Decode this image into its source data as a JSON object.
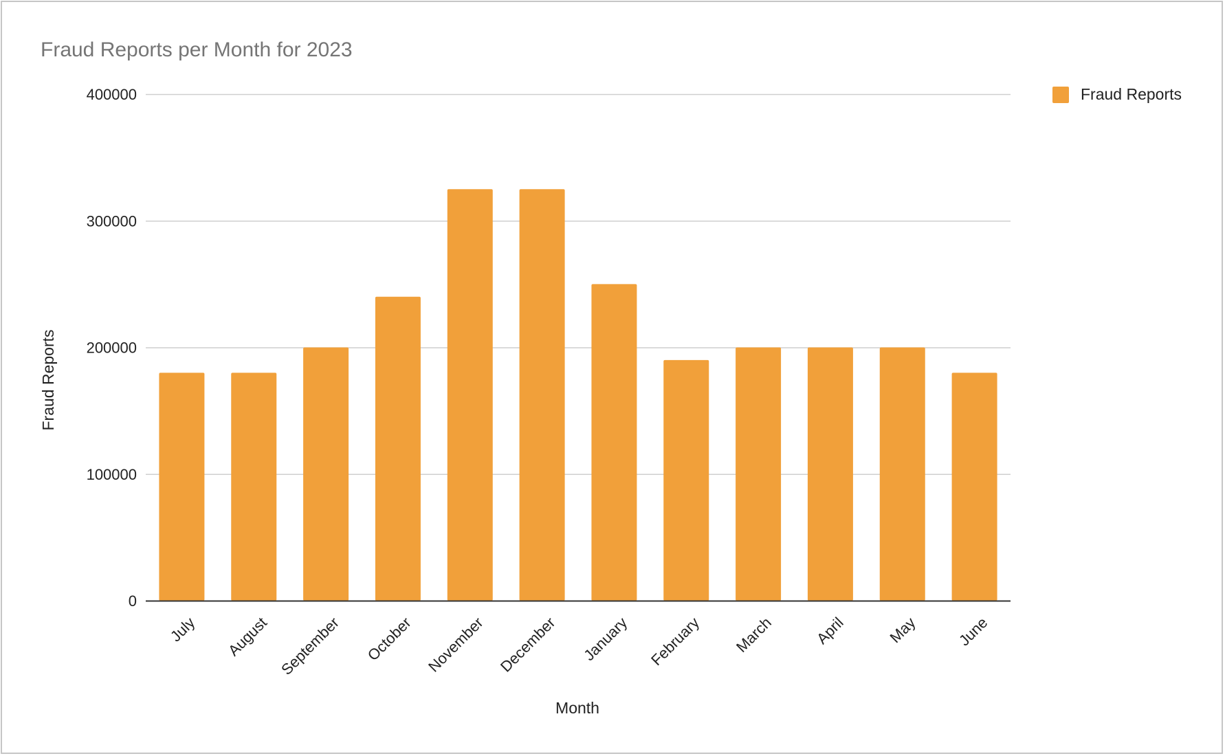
{
  "chart_data": {
    "type": "bar",
    "title": "Fraud Reports per Month for 2023",
    "xlabel": "Month",
    "ylabel": "Fraud Reports",
    "categories": [
      "July",
      "August",
      "September",
      "October",
      "November",
      "December",
      "January",
      "February",
      "March",
      "April",
      "May",
      "June"
    ],
    "series": [
      {
        "name": "Fraud Reports",
        "values": [
          180000,
          180000,
          200000,
          240000,
          325000,
          325000,
          250000,
          190000,
          200000,
          200000,
          200000,
          180000
        ],
        "color": "#f1a03a"
      }
    ],
    "ylim": [
      0,
      400000
    ],
    "yticks": [
      0,
      100000,
      200000,
      300000,
      400000
    ],
    "grid": true,
    "legend": "right"
  }
}
